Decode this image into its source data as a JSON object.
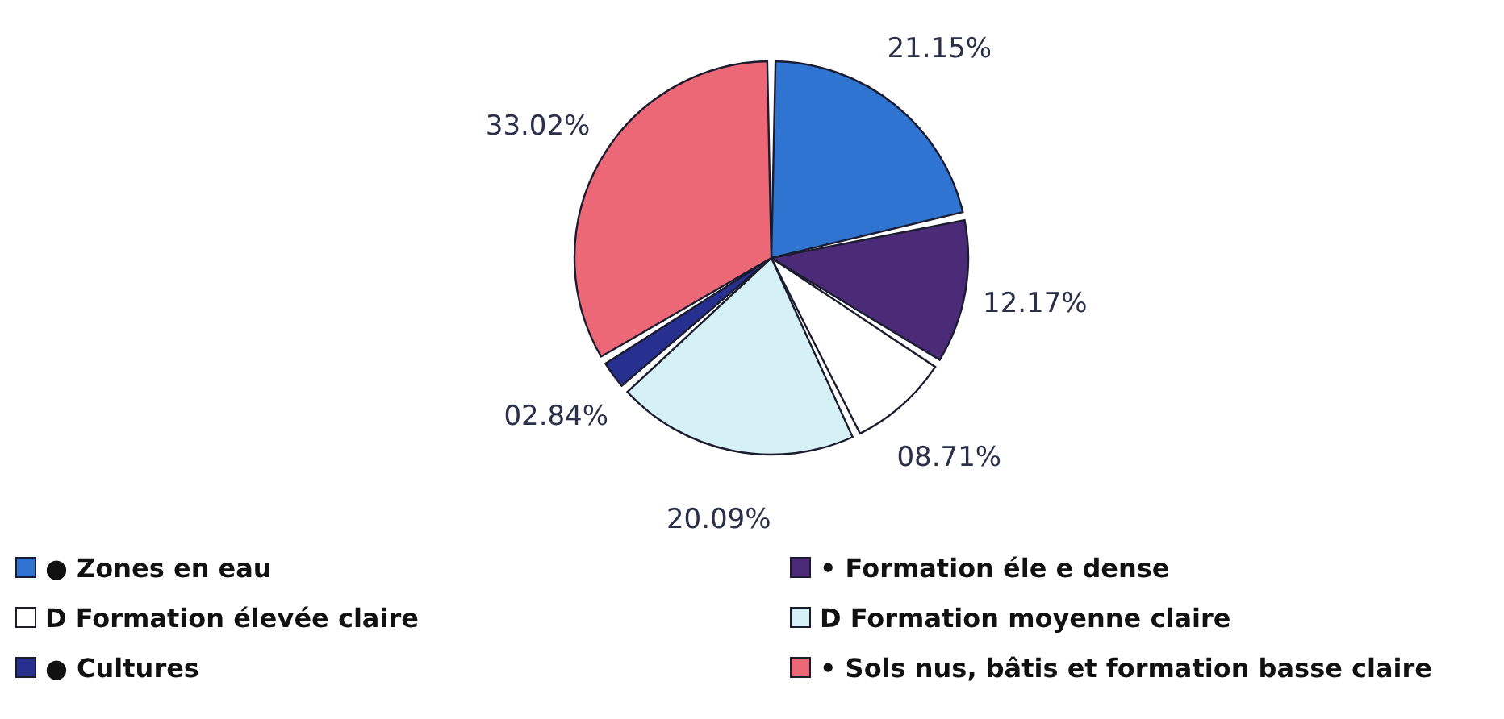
{
  "chart_data": {
    "type": "pie",
    "categories": [
      "● Zones en eau",
      "• Formation éle    e dense",
      "D Formation élevée claire",
      "D Formation moyenne claire",
      "● Cultures",
      "• Sols nus, bâtis et formation basse claire"
    ],
    "values": [
      21.15,
      12.17,
      8.71,
      20.09,
      2.84,
      33.02
    ],
    "value_labels": [
      "21.15%",
      "12.17%",
      "08.71%",
      "20.09%",
      "02.84%",
      "33.02%"
    ],
    "colors": [
      "#2f74d0",
      "#4b2a78",
      "#ffffff",
      "#d6f1f5",
      "#27308f",
      "#ec6877"
    ],
    "legend": "bottom"
  }
}
